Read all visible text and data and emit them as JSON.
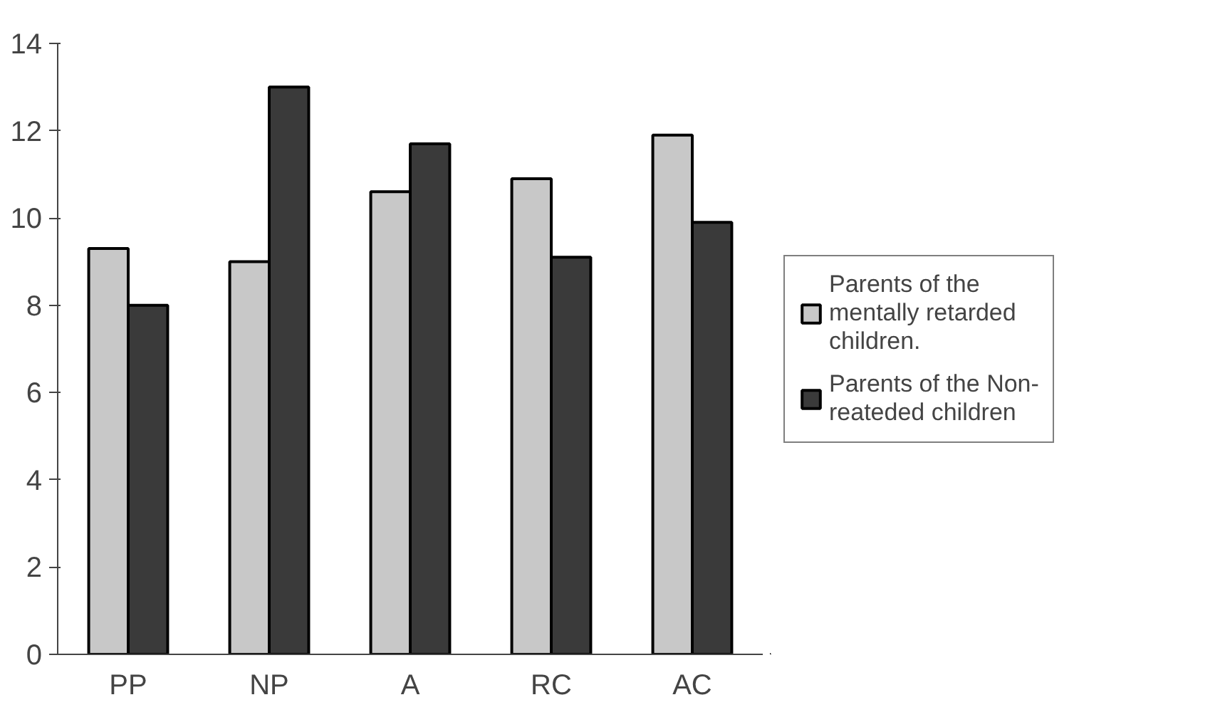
{
  "chart_data": {
    "type": "bar",
    "categories": [
      "PP",
      "NP",
      "A",
      "RC",
      "AC"
    ],
    "series": [
      {
        "name": "Parents of the mentally retarded children.",
        "color": "#c8c8c8",
        "values": [
          9.3,
          9.0,
          10.6,
          10.9,
          11.9
        ]
      },
      {
        "name": "Parents of the Non-reateded children",
        "color": "#3a3a3a",
        "values": [
          8.0,
          13.0,
          11.7,
          9.1,
          9.9
        ]
      }
    ],
    "ylim": [
      0,
      14
    ],
    "yticks": [
      0,
      2,
      4,
      6,
      8,
      10,
      12,
      14
    ],
    "grid": false,
    "legend": "right"
  }
}
